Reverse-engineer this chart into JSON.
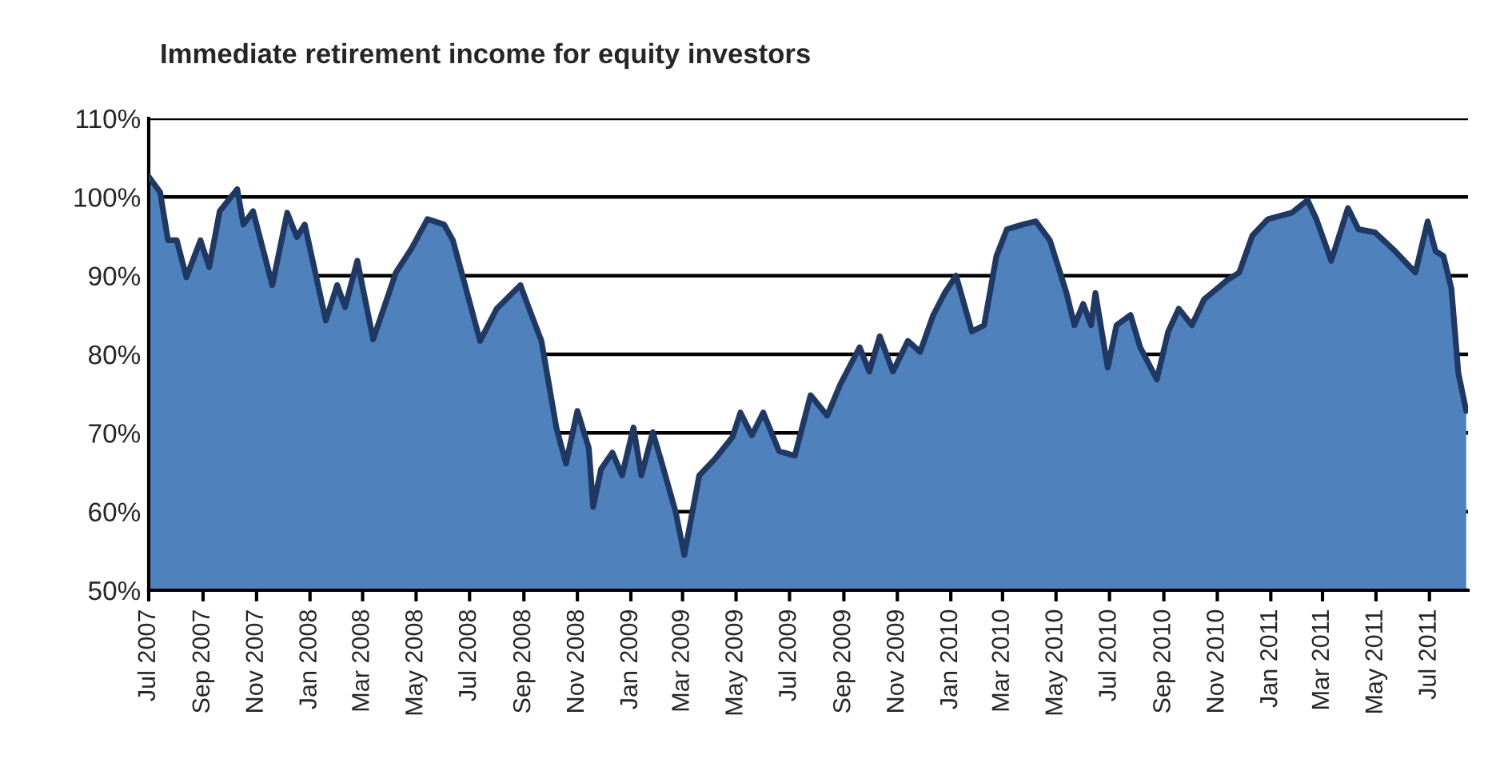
{
  "chart_data": {
    "type": "area",
    "title": "Immediate retirement income for equity investors",
    "x": [
      "2007-07-01",
      "2007-07-14",
      "2007-07-23",
      "2007-08-02",
      "2007-08-13",
      "2007-08-29",
      "2007-09-08",
      "2007-09-20",
      "2007-10-10",
      "2007-10-17",
      "2007-10-28",
      "2007-11-19",
      "2007-12-06",
      "2007-12-17",
      "2007-12-26",
      "2008-01-19",
      "2008-02-01",
      "2008-02-10",
      "2008-02-24",
      "2008-03-13",
      "2008-04-08",
      "2008-04-26",
      "2008-05-14",
      "2008-06-02",
      "2008-06-12",
      "2008-07-13",
      "2008-08-01",
      "2008-08-28",
      "2008-09-07",
      "2008-09-21",
      "2008-10-08",
      "2008-10-19",
      "2008-11-01",
      "2008-11-14",
      "2008-11-19",
      "2008-11-28",
      "2008-12-11",
      "2008-12-22",
      "2009-01-04",
      "2009-01-13",
      "2009-01-26",
      "2009-02-04",
      "2009-02-21",
      "2009-03-03",
      "2009-03-20",
      "2009-04-07",
      "2009-04-27",
      "2009-05-06",
      "2009-05-19",
      "2009-06-01",
      "2009-06-19",
      "2009-07-07",
      "2009-07-25",
      "2009-08-13",
      "2009-08-28",
      "2009-09-19",
      "2009-09-30",
      "2009-10-12",
      "2009-10-27",
      "2009-11-13",
      "2009-11-27",
      "2009-12-12",
      "2009-12-25",
      "2010-01-07",
      "2010-01-25",
      "2010-02-08",
      "2010-02-22",
      "2010-03-06",
      "2010-03-24",
      "2010-04-08",
      "2010-04-24",
      "2010-05-13",
      "2010-05-22",
      "2010-06-01",
      "2010-06-10",
      "2010-06-15",
      "2010-06-29",
      "2010-07-09",
      "2010-07-25",
      "2010-08-05",
      "2010-08-24",
      "2010-09-06",
      "2010-09-18",
      "2010-10-03",
      "2010-10-17",
      "2010-11-12",
      "2010-11-26",
      "2010-12-11",
      "2010-12-29",
      "2011-01-25",
      "2011-02-12",
      "2011-02-22",
      "2011-03-11",
      "2011-03-30",
      "2011-04-11",
      "2011-04-30",
      "2011-05-23",
      "2011-06-15",
      "2011-06-29",
      "2011-07-08",
      "2011-07-17",
      "2011-07-26",
      "2011-08-03",
      "2011-08-12"
    ],
    "series": [
      {
        "color": "#4f81bd",
        "values": [
          102.6,
          100.6,
          94.5,
          94.5,
          89.8,
          94.5,
          91.1,
          98.2,
          101.0,
          96.5,
          98.2,
          88.8,
          98.0,
          94.9,
          96.5,
          84.3,
          88.8,
          86.0,
          91.9,
          81.9,
          90.4,
          93.5,
          97.2,
          96.5,
          94.5,
          81.7,
          85.8,
          88.8,
          85.8,
          81.7,
          70.7,
          66.1,
          72.8,
          68.1,
          60.6,
          65.4,
          67.5,
          64.6,
          70.7,
          64.6,
          70.1,
          66.7,
          60.0,
          54.5,
          64.6,
          66.7,
          69.5,
          72.6,
          69.7,
          72.6,
          67.7,
          67.1,
          74.8,
          72.2,
          76.2,
          80.9,
          77.8,
          82.3,
          77.8,
          81.7,
          80.3,
          85.0,
          87.8,
          90.0,
          82.9,
          83.7,
          92.5,
          95.9,
          96.5,
          96.9,
          94.5,
          87.8,
          83.7,
          86.4,
          83.7,
          87.8,
          78.3,
          83.7,
          85.0,
          80.9,
          76.8,
          82.9,
          85.8,
          83.7,
          87.0,
          89.4,
          90.4,
          95.1,
          97.2,
          98.0,
          99.6,
          97.2,
          91.9,
          98.6,
          95.9,
          95.5,
          93.1,
          90.4,
          96.9,
          93.1,
          92.5,
          88.4,
          77.6,
          72.8
        ]
      }
    ],
    "xlim": [
      "2007-07-01",
      "2011-08-14"
    ],
    "xticks": [
      {
        "value": "2007-07-01",
        "label": "Jul 2007"
      },
      {
        "value": "2007-09-01",
        "label": "Sep 2007"
      },
      {
        "value": "2007-11-01",
        "label": "Nov 2007"
      },
      {
        "value": "2008-01-01",
        "label": "Jan 2008"
      },
      {
        "value": "2008-03-01",
        "label": "Mar 2008"
      },
      {
        "value": "2008-05-01",
        "label": "May 2008"
      },
      {
        "value": "2008-07-01",
        "label": "Jul 2008"
      },
      {
        "value": "2008-09-01",
        "label": "Sep 2008"
      },
      {
        "value": "2008-11-01",
        "label": "Nov 2008"
      },
      {
        "value": "2009-01-01",
        "label": "Jan 2009"
      },
      {
        "value": "2009-03-01",
        "label": "Mar 2009"
      },
      {
        "value": "2009-05-01",
        "label": "May 2009"
      },
      {
        "value": "2009-07-01",
        "label": "Jul 2009"
      },
      {
        "value": "2009-09-01",
        "label": "Sep 2009"
      },
      {
        "value": "2009-11-01",
        "label": "Nov 2009"
      },
      {
        "value": "2010-01-01",
        "label": "Jan 2010"
      },
      {
        "value": "2010-03-01",
        "label": "Mar 2010"
      },
      {
        "value": "2010-05-01",
        "label": "May 2010"
      },
      {
        "value": "2010-07-01",
        "label": "Jul 2010"
      },
      {
        "value": "2010-09-01",
        "label": "Sep 2010"
      },
      {
        "value": "2010-11-01",
        "label": "Nov 2010"
      },
      {
        "value": "2011-01-01",
        "label": "Jan 2011"
      },
      {
        "value": "2011-03-01",
        "label": "Mar 2011"
      },
      {
        "value": "2011-05-01",
        "label": "May 2011"
      },
      {
        "value": "2011-07-01",
        "label": "Jul 2011"
      }
    ],
    "ylim": [
      50,
      110
    ],
    "yticks": [
      {
        "value": 50,
        "label": "50%"
      },
      {
        "value": 60,
        "label": "60%"
      },
      {
        "value": 70,
        "label": "70%"
      },
      {
        "value": 80,
        "label": "80%"
      },
      {
        "value": 90,
        "label": "90%"
      },
      {
        "value": 100,
        "label": "100%"
      },
      {
        "value": 110,
        "label": "110%"
      }
    ],
    "grid": "y"
  }
}
